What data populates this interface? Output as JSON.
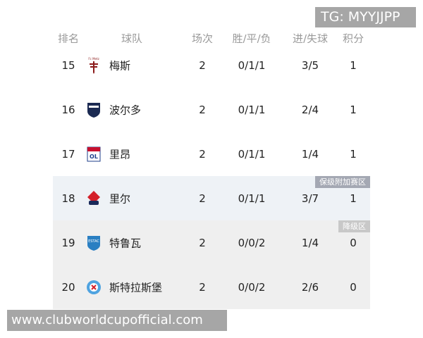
{
  "watermark_tg": "TG: MYYJJPP",
  "banner": "www.clubworldcupofficial.com",
  "headers": {
    "rank": "排名",
    "team": "球队",
    "played": "场次",
    "wdl": "胜/平/负",
    "goals": "进/失球",
    "points": "积分"
  },
  "rows": [
    {
      "rank": "15",
      "team": "梅斯",
      "played": "2",
      "wdl": "0/1/1",
      "goals": "3/5",
      "points": "1",
      "logo": "metz-logo",
      "logo_text": "Fc Metz",
      "bg": "#ffffff"
    },
    {
      "rank": "16",
      "team": "波尔多",
      "played": "2",
      "wdl": "0/1/1",
      "goals": "2/4",
      "points": "1",
      "logo": "bordeaux-logo",
      "bg": "#ffffff"
    },
    {
      "rank": "17",
      "team": "里昂",
      "played": "2",
      "wdl": "0/1/1",
      "goals": "1/4",
      "points": "1",
      "logo": "lyon-logo",
      "bg": "#ffffff"
    },
    {
      "rank": "18",
      "team": "里尔",
      "played": "2",
      "wdl": "0/1/1",
      "goals": "3/7",
      "points": "1",
      "logo": "lille-logo",
      "bg": "#eef2f6",
      "zone": "保级附加赛区"
    },
    {
      "rank": "19",
      "team": "特鲁瓦",
      "played": "2",
      "wdl": "0/0/2",
      "goals": "1/4",
      "points": "0",
      "logo": "troyes-logo",
      "bg": "#efefef",
      "zone": "降级区"
    },
    {
      "rank": "20",
      "team": "斯特拉斯堡",
      "played": "2",
      "wdl": "0/0/2",
      "goals": "2/6",
      "points": "0",
      "logo": "strasbourg-logo",
      "bg": "#efefef"
    }
  ],
  "colors": {
    "playoff_tag": "#a4a8b3",
    "relegation_tag": "#c8c8c8"
  }
}
